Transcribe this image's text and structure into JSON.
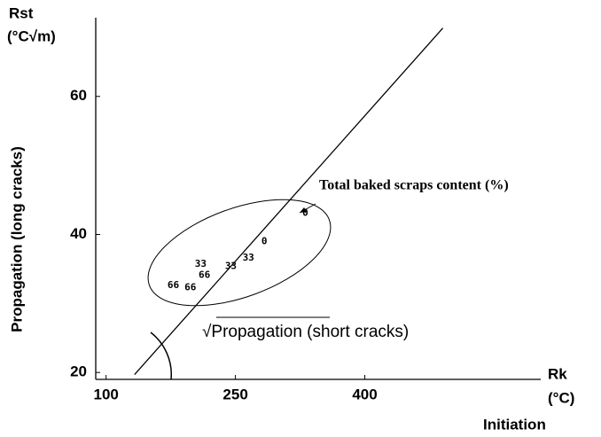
{
  "chart_data": {
    "type": "scatter",
    "y_title": "Rst",
    "y_unit": "(°C√m)",
    "y_label": "Propagation (long cracks)",
    "x_title": "Rk",
    "x_unit": "(°C)",
    "x_label": "Initiation",
    "annotation": "Total baked scraps content (%)",
    "line_annotation": "√Propagation (short cracks)",
    "x": [
      331,
      283.5,
      265,
      244.7,
      209.7,
      214,
      178,
      197.7
    ],
    "y": [
      43.1,
      39,
      36.6,
      35.4,
      35.7,
      34.1,
      32.6,
      32.3
    ],
    "labels": [
      "0",
      "0",
      "33",
      "33",
      "33",
      "66",
      "66",
      "66"
    ],
    "line": {
      "x": [
        133,
        490.5
      ],
      "y": [
        19.7,
        69.9
      ]
    },
    "xlim": [
      88,
      604
    ],
    "ylim": [
      19,
      71.4
    ],
    "xticks": [
      100,
      250,
      400
    ],
    "yticks": [
      20,
      40,
      60
    ]
  }
}
